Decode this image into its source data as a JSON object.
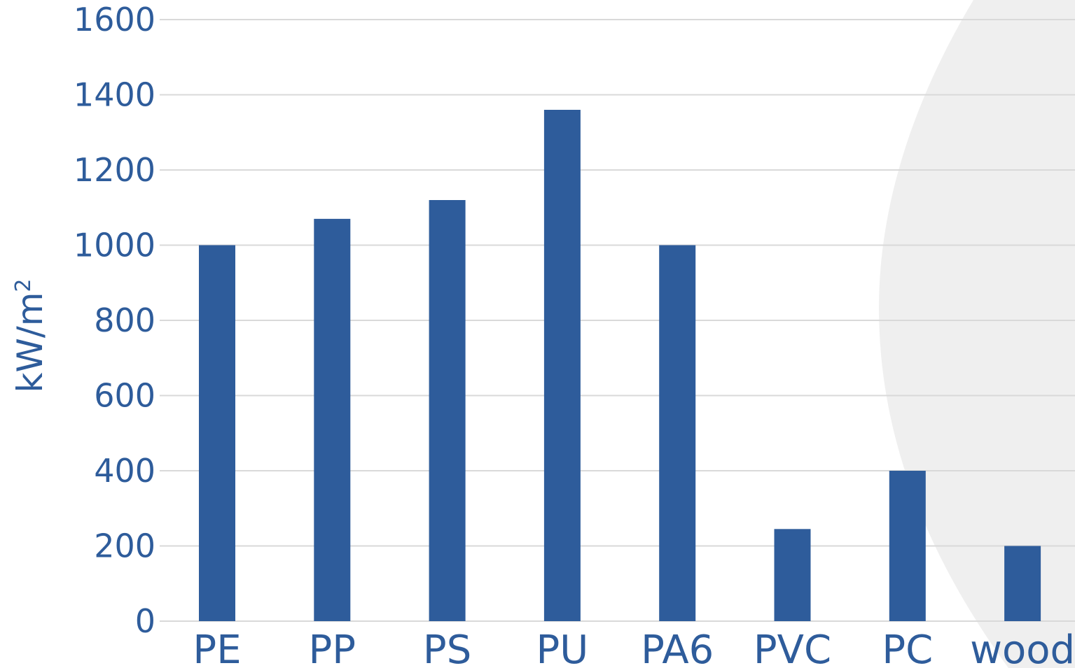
{
  "chart_data": {
    "type": "bar",
    "title": "",
    "xlabel": "",
    "ylabel": "kW/m",
    "ylabel_superscript": "2",
    "categories": [
      "PE",
      "PP",
      "PS",
      "PU",
      "PA6",
      "PVC",
      "PC",
      "wood"
    ],
    "values": [
      1000,
      1070,
      1120,
      1360,
      1000,
      245,
      400,
      200
    ],
    "ylim": [
      0,
      1600
    ],
    "yticks": [
      0,
      200,
      400,
      600,
      800,
      1000,
      1200,
      1400,
      1600
    ],
    "grid": true,
    "legend": "none"
  },
  "colors": {
    "bar": "#2e5c9b",
    "text": "#2e5c9b",
    "grid": "#d9d9d9",
    "background_shape": "#efefef"
  }
}
